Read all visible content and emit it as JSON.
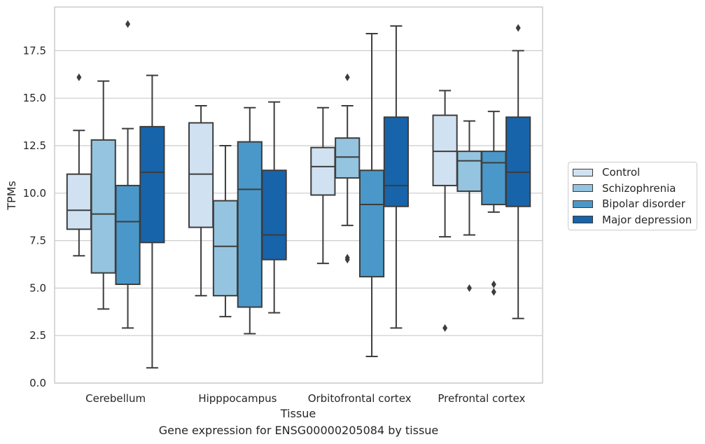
{
  "caption": "Gene expression for ENSG00000205084 by tissue",
  "chart_data": {
    "type": "box",
    "title": "",
    "xlabel": "Tissue",
    "ylabel": "TPMs",
    "ylim": [
      0,
      19.8
    ],
    "yticks": [
      "0.0",
      "2.5",
      "5.0",
      "7.5",
      "10.0",
      "12.5",
      "15.0",
      "17.5"
    ],
    "grid": "horizontal",
    "legend_position": "right",
    "categories": [
      "Cerebellum",
      "Hipppocampus",
      "Orbitofrontal cortex",
      "Prefrontal cortex"
    ],
    "series": [
      {
        "name": "Control",
        "color": "#d0e1f2",
        "boxes": [
          {
            "whislo": 6.7,
            "q1": 8.1,
            "med": 9.1,
            "q3": 11.0,
            "whishi": 13.3,
            "fliers": [
              16.1
            ]
          },
          {
            "whislo": 4.6,
            "q1": 8.2,
            "med": 11.0,
            "q3": 13.7,
            "whishi": 14.6,
            "fliers": []
          },
          {
            "whislo": 6.3,
            "q1": 9.9,
            "med": 11.4,
            "q3": 12.4,
            "whishi": 14.5,
            "fliers": []
          },
          {
            "whislo": 7.7,
            "q1": 10.4,
            "med": 12.2,
            "q3": 14.1,
            "whishi": 15.4,
            "fliers": [
              2.9
            ]
          }
        ]
      },
      {
        "name": "Schizophrenia",
        "color": "#94c4df",
        "boxes": [
          {
            "whislo": 3.9,
            "q1": 5.8,
            "med": 8.9,
            "q3": 12.8,
            "whishi": 15.9,
            "fliers": []
          },
          {
            "whislo": 3.5,
            "q1": 4.6,
            "med": 7.2,
            "q3": 9.6,
            "whishi": 12.5,
            "fliers": []
          },
          {
            "whislo": 8.3,
            "q1": 10.8,
            "med": 11.9,
            "q3": 12.9,
            "whishi": 14.6,
            "fliers": [
              16.1,
              6.6,
              6.5
            ]
          },
          {
            "whislo": 7.8,
            "q1": 10.1,
            "med": 11.7,
            "q3": 12.2,
            "whishi": 13.8,
            "fliers": [
              5.0
            ]
          }
        ]
      },
      {
        "name": "Bipolar disorder",
        "color": "#4a98c9",
        "boxes": [
          {
            "whislo": 2.9,
            "q1": 5.2,
            "med": 8.5,
            "q3": 10.4,
            "whishi": 13.4,
            "fliers": [
              18.9
            ]
          },
          {
            "whislo": 2.6,
            "q1": 4.0,
            "med": 10.2,
            "q3": 12.7,
            "whishi": 14.5,
            "fliers": []
          },
          {
            "whislo": 1.4,
            "q1": 5.6,
            "med": 9.4,
            "q3": 11.2,
            "whishi": 18.4,
            "fliers": []
          },
          {
            "whislo": 9.0,
            "q1": 9.4,
            "med": 11.6,
            "q3": 12.2,
            "whishi": 14.3,
            "fliers": [
              5.2,
              4.8
            ]
          }
        ]
      },
      {
        "name": "Major depression",
        "color": "#1764ab",
        "boxes": [
          {
            "whislo": 0.8,
            "q1": 7.4,
            "med": 11.1,
            "q3": 13.5,
            "whishi": 16.2,
            "fliers": []
          },
          {
            "whislo": 3.7,
            "q1": 6.5,
            "med": 7.8,
            "q3": 11.2,
            "whishi": 14.8,
            "fliers": []
          },
          {
            "whislo": 2.9,
            "q1": 9.3,
            "med": 10.4,
            "q3": 14.0,
            "whishi": 18.8,
            "fliers": []
          },
          {
            "whislo": 3.4,
            "q1": 9.3,
            "med": 11.1,
            "q3": 14.0,
            "whishi": 17.5,
            "fliers": [
              18.7
            ]
          }
        ]
      }
    ]
  }
}
